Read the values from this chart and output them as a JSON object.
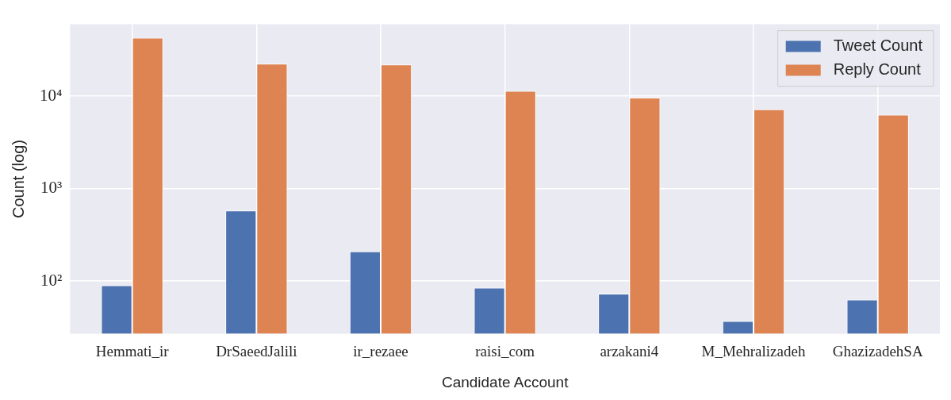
{
  "chart_data": {
    "type": "bar",
    "xlabel": "Candidate Account",
    "ylabel": "Count (log)",
    "categories": [
      "Hemmati_ir",
      "DrSaeedJalili",
      "ir_rezaee",
      "raisi_com",
      "arzakani4",
      "M_Mehralizadeh",
      "GhazizadehSA"
    ],
    "series": [
      {
        "name": "Tweet Count",
        "color": "#4c72b0",
        "values": [
          90,
          580,
          210,
          85,
          73,
          37,
          63
        ]
      },
      {
        "name": "Reply Count",
        "color": "#dd8452",
        "values": [
          43000,
          22500,
          22000,
          11400,
          9650,
          7200,
          6300
        ]
      }
    ],
    "log": "y",
    "ylim": [
      27,
      60000
    ],
    "yticks": [
      {
        "value": 100,
        "label": "10²"
      },
      {
        "value": 1000,
        "label": "10³"
      },
      {
        "value": 10000,
        "label": "10⁴"
      }
    ],
    "grid": true,
    "legend": "top right"
  }
}
